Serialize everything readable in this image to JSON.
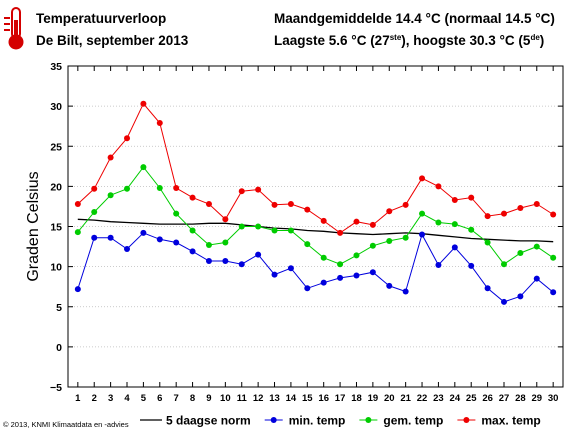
{
  "header": {
    "title": "Temperatuurverloop",
    "subtitle": "De Bilt, september 2013",
    "mean_line": "Maandgemiddelde 14.4 °C (normaal 14.5 °C)",
    "extremes_prefix": "Laagste 5.6 °C (27",
    "extremes_low_sup": "ste",
    "extremes_middle": "), hoogste 30.3 °C (5",
    "extremes_high_sup": "de",
    "extremes_suffix": ")"
  },
  "footer": {
    "copyright": "© 2013, KNMI Klimaatdata en -advies"
  },
  "icons": {
    "thermometer": "thermometer-icon"
  },
  "colors": {
    "norm": "#000000",
    "min": "#0000dd",
    "mean": "#00cc00",
    "max": "#ee0000",
    "grid": "#bbbbbb"
  },
  "chart_data": {
    "type": "line",
    "ylabel": "Graden Celsius",
    "xlabel": "",
    "ylim": [
      -5,
      35
    ],
    "yticks": [
      -5,
      0,
      5,
      10,
      15,
      20,
      25,
      30,
      35
    ],
    "grid": true,
    "legend_position": "bottom",
    "x": [
      1,
      2,
      3,
      4,
      5,
      6,
      7,
      8,
      9,
      10,
      11,
      12,
      13,
      14,
      15,
      16,
      17,
      18,
      19,
      20,
      21,
      22,
      23,
      24,
      25,
      26,
      27,
      28,
      29,
      30
    ],
    "series": [
      {
        "name": "5 daagse norm",
        "color": "#000000",
        "markers": false,
        "values": [
          15.9,
          15.8,
          15.6,
          15.5,
          15.4,
          15.3,
          15.3,
          15.3,
          15.4,
          15.4,
          15.2,
          15.0,
          14.8,
          14.7,
          14.5,
          14.4,
          14.2,
          14.1,
          14.0,
          14.1,
          14.2,
          14.1,
          13.9,
          13.7,
          13.5,
          13.4,
          13.3,
          13.2,
          13.2,
          13.1
        ]
      },
      {
        "name": "min. temp",
        "color": "#0000dd",
        "markers": true,
        "values": [
          7.2,
          13.6,
          13.6,
          12.2,
          14.2,
          13.4,
          13.0,
          11.9,
          10.7,
          10.7,
          10.3,
          11.5,
          9.0,
          9.8,
          7.3,
          8.0,
          8.6,
          8.9,
          9.3,
          7.6,
          6.9,
          14.0,
          10.2,
          12.4,
          10.1,
          7.3,
          5.6,
          6.3,
          8.5,
          6.8
        ]
      },
      {
        "name": "gem. temp",
        "color": "#00cc00",
        "markers": true,
        "values": [
          14.3,
          16.8,
          18.9,
          19.7,
          22.4,
          19.8,
          16.6,
          14.5,
          12.7,
          13.0,
          15.0,
          15.0,
          14.5,
          14.5,
          12.8,
          11.1,
          10.3,
          11.4,
          12.6,
          13.2,
          13.6,
          16.6,
          15.5,
          15.3,
          14.6,
          13.0,
          10.3,
          11.7,
          12.5,
          11.1
        ]
      },
      {
        "name": "max. temp",
        "color": "#ee0000",
        "markers": true,
        "values": [
          17.8,
          19.7,
          23.6,
          26.0,
          30.3,
          27.9,
          19.8,
          18.6,
          17.8,
          15.9,
          19.4,
          19.6,
          17.7,
          17.8,
          17.1,
          15.7,
          14.2,
          15.6,
          15.2,
          16.9,
          17.7,
          21.0,
          20.0,
          18.3,
          18.6,
          16.3,
          16.6,
          17.3,
          17.8,
          16.5
        ]
      }
    ]
  }
}
